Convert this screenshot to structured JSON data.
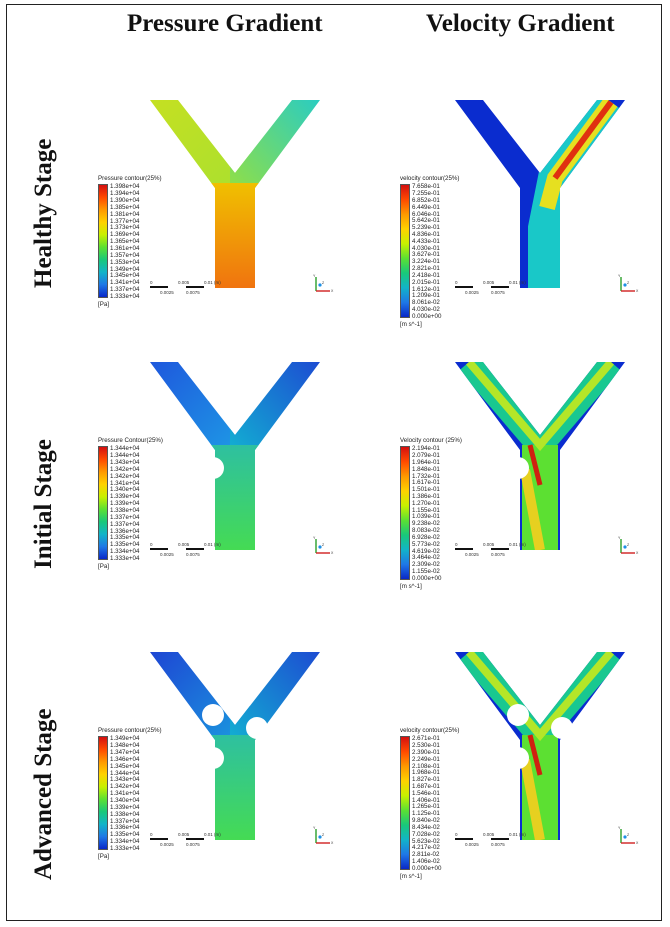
{
  "headers": {
    "pressure": "Pressure Gradient",
    "velocity": "Velocity Gradient"
  },
  "rows": [
    {
      "label": "Healthy Stage",
      "pressure": {
        "title": "Pressure contour(25%)",
        "values": [
          "1.398e+04",
          "1.394e+04",
          "1.390e+04",
          "1.385e+04",
          "1.381e+04",
          "1.377e+04",
          "1.373e+04",
          "1.369e+04",
          "1.365e+04",
          "1.361e+04",
          "1.357e+04",
          "1.353e+04",
          "1.349e+04",
          "1.345e+04",
          "1.341e+04",
          "1.337e+04",
          "1.333e+04"
        ],
        "unit": "[Pa]"
      },
      "velocity": {
        "title": "velocity contour(25%)",
        "values": [
          "7.658e-01",
          "7.255e-01",
          "6.852e-01",
          "6.449e-01",
          "6.046e-01",
          "5.642e-01",
          "5.239e-01",
          "4.836e-01",
          "4.433e-01",
          "4.030e-01",
          "3.627e-01",
          "3.224e-01",
          "2.821e-01",
          "2.418e-01",
          "2.015e-01",
          "1.612e-01",
          "1.209e-01",
          "8.061e-02",
          "4.030e-02",
          "0.000e+00"
        ],
        "unit": "[m s^-1]"
      }
    },
    {
      "label": "Initial Stage",
      "pressure": {
        "title": "Pressure Contour(25%)",
        "values": [
          "1.344e+04",
          "1.344e+04",
          "1.343e+04",
          "1.342e+04",
          "1.342e+04",
          "1.341e+04",
          "1.340e+04",
          "1.339e+04",
          "1.339e+04",
          "1.338e+04",
          "1.337e+04",
          "1.337e+04",
          "1.336e+04",
          "1.335e+04",
          "1.335e+04",
          "1.334e+04",
          "1.333e+04"
        ],
        "unit": "[Pa]"
      },
      "velocity": {
        "title": "Velocity contour (25%)",
        "values": [
          "2.194e-01",
          "2.079e-01",
          "1.964e-01",
          "1.848e-01",
          "1.732e-01",
          "1.617e-01",
          "1.501e-01",
          "1.386e-01",
          "1.270e-01",
          "1.155e-01",
          "1.039e-01",
          "9.238e-02",
          "8.083e-02",
          "6.928e-02",
          "5.773e-02",
          "4.619e-02",
          "3.464e-02",
          "2.309e-02",
          "1.155e-02",
          "0.000e+00"
        ],
        "unit": "[m s^-1]"
      }
    },
    {
      "label": "Advanced Stage",
      "pressure": {
        "title": "Pressure contour(25%)",
        "values": [
          "1.349e+04",
          "1.348e+04",
          "1.347e+04",
          "1.346e+04",
          "1.345e+04",
          "1.344e+04",
          "1.343e+04",
          "1.342e+04",
          "1.341e+04",
          "1.340e+04",
          "1.339e+04",
          "1.338e+04",
          "1.337e+04",
          "1.336e+04",
          "1.335e+04",
          "1.334e+04",
          "1.333e+04"
        ],
        "unit": "[Pa]"
      },
      "velocity": {
        "title": "velocity contour(25%)",
        "values": [
          "2.671e-01",
          "2.530e-01",
          "2.390e-01",
          "2.249e-01",
          "2.108e-01",
          "1.968e-01",
          "1.827e-01",
          "1.687e-01",
          "1.546e-01",
          "1.406e-01",
          "1.265e-01",
          "1.125e-01",
          "9.840e-02",
          "8.434e-02",
          "7.028e-02",
          "5.623e-02",
          "4.217e-02",
          "2.811e-02",
          "1.406e-02",
          "0.000e+00"
        ],
        "unit": "[m s^-1]"
      }
    }
  ],
  "scale_bar": {
    "top": [
      "0",
      "0.005",
      "0.01 (m)"
    ],
    "bottom": [
      "0.0025",
      "0.0075"
    ]
  },
  "axes": {
    "y": "Y",
    "x": "X",
    "z": "Z"
  },
  "colors": {
    "frame": "#222222",
    "rainbow": [
      "#d41010",
      "#ff4a00",
      "#ff9900",
      "#ffd200",
      "#c8f000",
      "#5ce032",
      "#19c87a",
      "#12b4c8",
      "#1e78e6",
      "#0a28c8"
    ]
  }
}
